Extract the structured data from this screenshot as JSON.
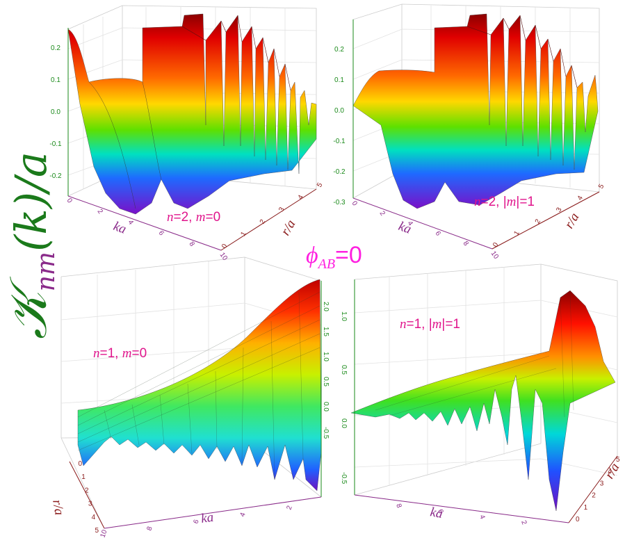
{
  "figure": {
    "ylabel_main": "𝒦",
    "ylabel_sub": "nm",
    "ylabel_rest": "(k)/a",
    "center_label_sym": "ϕ",
    "center_label_sub": "AB",
    "center_label_rest": "=0",
    "colors": {
      "ylabel": "#1b7a1b",
      "center": "#ff20e0",
      "panel_label": "#e0158c",
      "z_axis": "#1a8a1a",
      "x_axis": "#8a2a8a",
      "y_axis": "#8a1a1a"
    }
  },
  "chart_data": [
    {
      "type": "surface",
      "panel": "top-left",
      "label_n": "n",
      "label_n_val": "=2, ",
      "label_m": "m",
      "label_m_val": "=0",
      "xlabel": "ka",
      "ylabel": "r/a",
      "xlim": [
        0,
        10
      ],
      "ylim": [
        0,
        5
      ],
      "zlim": [
        -0.27,
        0.27
      ],
      "x_ticks": [
        "0",
        "2",
        "4",
        "6",
        "8",
        "10"
      ],
      "y_ticks": [
        "0",
        "1",
        "2",
        "3",
        "4",
        "5"
      ],
      "z_ticks": [
        "0.2",
        "0.1",
        "0.0",
        "-0.1",
        "-0.2"
      ],
      "z_values": [
        0.2,
        0.1,
        0.0,
        -0.1,
        -0.2
      ]
    },
    {
      "type": "surface",
      "panel": "top-right",
      "label_n": "n",
      "label_n_val": "=2, |",
      "label_m": "m",
      "label_m_val": "|=1",
      "xlabel": "ka",
      "ylabel": "r/a",
      "xlim": [
        0,
        10
      ],
      "ylim": [
        0,
        5
      ],
      "zlim": [
        -0.3,
        0.25
      ],
      "x_ticks": [
        "0",
        "2",
        "4",
        "6",
        "8",
        "10"
      ],
      "y_ticks": [
        "0",
        "1",
        "2",
        "3",
        "4",
        "5"
      ],
      "z_ticks": [
        "0.2",
        "0.1",
        "0.0",
        "-0.1",
        "-0.2",
        "-0.3"
      ],
      "z_values": [
        0.2,
        0.1,
        0.0,
        -0.1,
        -0.2,
        -0.3
      ]
    },
    {
      "type": "surface",
      "panel": "bottom-left",
      "label_n": "n",
      "label_n_val": "=1, ",
      "label_m": "m",
      "label_m_val": "=0",
      "xlabel": "ka",
      "ylabel": "r/a",
      "xlim": [
        0,
        10
      ],
      "ylim": [
        0,
        5
      ],
      "zlim": [
        -0.6,
        2.0
      ],
      "x_ticks": [
        "10",
        "8",
        "6",
        "4",
        "2"
      ],
      "y_ticks": [
        "0",
        "1",
        "2",
        "3",
        "4",
        "5"
      ],
      "z_ticks": [
        "2.0",
        "1.5",
        "1.0",
        "0.5",
        "0.0",
        "-0.5"
      ],
      "z_values": [
        2.0,
        1.5,
        1.0,
        0.5,
        0.0,
        -0.5
      ]
    },
    {
      "type": "surface",
      "panel": "bottom-right",
      "label_n": "n",
      "label_n_val": "=1, |",
      "label_m": "m",
      "label_m_val": "|=1",
      "xlabel": "ka",
      "ylabel": "r/a",
      "xlim": [
        0,
        10
      ],
      "ylim": [
        0,
        5
      ],
      "zlim": [
        -0.8,
        1.2
      ],
      "x_ticks": [
        "8",
        "6",
        "4",
        "2"
      ],
      "y_ticks": [
        "0",
        "1",
        "2",
        "3",
        "4",
        "5"
      ],
      "z_ticks": [
        "1.0",
        "0.5",
        "0.0",
        "-0.5"
      ],
      "z_values": [
        1.0,
        0.5,
        0.0,
        -0.5
      ]
    }
  ]
}
